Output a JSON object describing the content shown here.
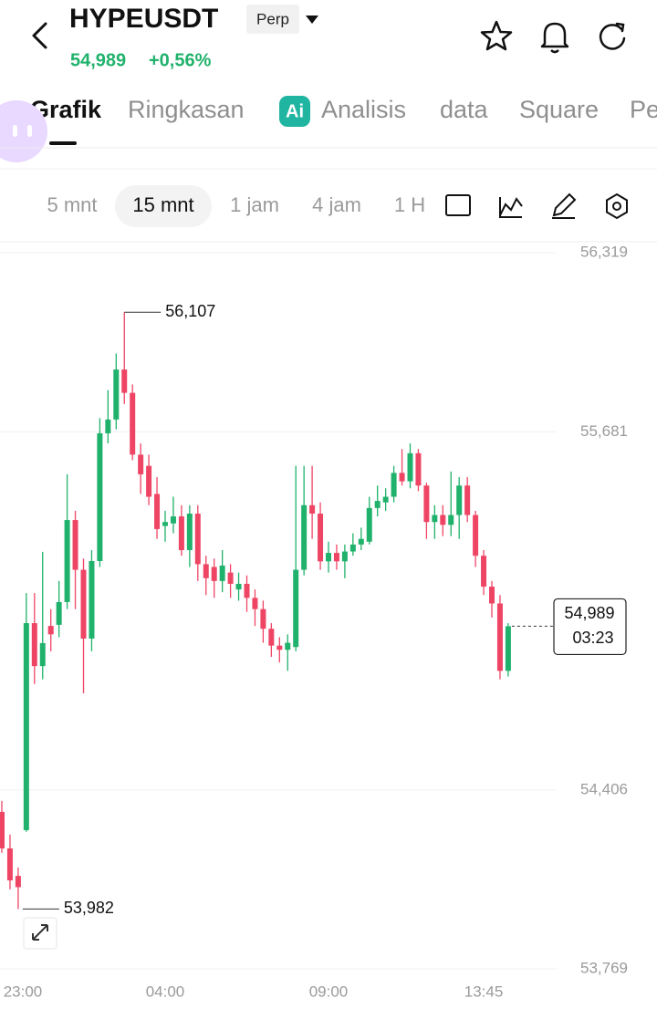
{
  "header": {
    "symbol": "HYPEUSDT",
    "badge": "Perp",
    "price": "54,989",
    "change": "+0,56%"
  },
  "tabs": [
    "Grafik",
    "Ringkasan",
    "Analisis",
    "data",
    "Square",
    "Pe"
  ],
  "active_tab": 0,
  "timeframes": [
    "5 mnt",
    "15 mnt",
    "1 jam",
    "4 jam",
    "1 H"
  ],
  "active_timeframe": 1,
  "chart_data": {
    "type": "candlestick",
    "categories": [
      "23:00",
      null,
      null,
      null,
      null,
      null,
      null,
      null,
      null,
      null,
      null,
      null,
      null,
      null,
      null,
      null,
      null,
      null,
      null,
      null,
      "04:00",
      null,
      null,
      null,
      null,
      null,
      null,
      null,
      null,
      null,
      null,
      null,
      null,
      null,
      null,
      null,
      null,
      null,
      null,
      null,
      "09:00",
      null,
      null,
      null,
      null,
      null,
      null,
      null,
      null,
      null,
      null,
      null,
      null,
      null,
      null,
      null,
      null,
      null,
      null,
      "13:45",
      null,
      null,
      null
    ],
    "open": [
      54328,
      54198,
      54100,
      54263,
      55000,
      54847,
      54990,
      54994,
      55075,
      55367,
      55190,
      54945,
      55221,
      55676,
      55725,
      55903,
      55820,
      55600,
      55560,
      55460,
      55346,
      55355,
      55380,
      55260,
      55390,
      55210,
      55200,
      55150,
      55180,
      55120,
      55140,
      55090,
      55050,
      54980,
      54920,
      54905,
      54915,
      55190,
      55420,
      55390,
      55220,
      55250,
      55220,
      55255,
      55280,
      55290,
      55410,
      55430,
      55450,
      55535,
      55505,
      55605,
      55490,
      55360,
      55385,
      55350,
      55385,
      55490,
      55385,
      55240,
      55130,
      55070,
      54830
    ],
    "high": [
      54367,
      54247,
      54130,
      55107,
      55107,
      55254,
      55050,
      55150,
      55530,
      55400,
      55230,
      55260,
      55730,
      55830,
      55960,
      56107,
      55850,
      55640,
      55600,
      55520,
      55400,
      55450,
      55420,
      55420,
      55420,
      55240,
      55230,
      55260,
      55210,
      55180,
      55170,
      55120,
      55080,
      55000,
      54950,
      54960,
      55560,
      55560,
      55560,
      55430,
      55290,
      55280,
      55280,
      55320,
      55340,
      55450,
      55490,
      55480,
      55560,
      55620,
      55640,
      55620,
      55500,
      55420,
      55420,
      55540,
      55520,
      55520,
      55400,
      55260,
      55150,
      55100,
      55000
    ],
    "low": [
      54182,
      54052,
      53982,
      54257,
      54783,
      54800,
      54900,
      54950,
      55050,
      55050,
      54750,
      54900,
      55200,
      55640,
      55690,
      55780,
      55580,
      55460,
      55420,
      55300,
      55290,
      55320,
      55240,
      55200,
      55150,
      55100,
      55090,
      55110,
      55090,
      55080,
      55040,
      54990,
      54930,
      54880,
      54860,
      54830,
      54900,
      55170,
      55300,
      55190,
      55180,
      55190,
      55160,
      55240,
      55260,
      55280,
      55380,
      55400,
      55430,
      55490,
      55480,
      55470,
      55300,
      55300,
      55310,
      55310,
      55300,
      55360,
      55200,
      55100,
      55020,
      54800,
      54810
    ],
    "close": [
      54198,
      54084,
      54060,
      55000,
      54847,
      54929,
      54960,
      55075,
      55367,
      55190,
      54945,
      55221,
      55676,
      55725,
      55903,
      55820,
      55600,
      55530,
      55450,
      55335,
      55360,
      55380,
      55260,
      55390,
      55210,
      55160,
      55150,
      55205,
      55140,
      55140,
      55090,
      55050,
      54980,
      54920,
      54905,
      54930,
      55190,
      55420,
      55390,
      55220,
      55250,
      55220,
      55255,
      55280,
      55300,
      55410,
      55435,
      55450,
      55535,
      55505,
      55605,
      55490,
      55360,
      55385,
      55350,
      55385,
      55490,
      55385,
      55240,
      55130,
      55070,
      54830,
      54989
    ],
    "up_color": "#20b26c",
    "down_color": "#ef4565",
    "ylim": [
      53769,
      56319
    ],
    "yticks": [
      {
        "value": 56319,
        "label": "56,319"
      },
      {
        "value": 55681,
        "label": "55,681"
      },
      {
        "value": 54406,
        "label": "54,406"
      },
      {
        "value": 53769,
        "label": "53,769"
      }
    ],
    "grid": true,
    "max_label": {
      "value": 56107,
      "label": "56,107"
    },
    "min_label": {
      "value": 53982,
      "label": "53,982"
    },
    "last_price": {
      "value": 54989,
      "label": "54,989",
      "countdown": "03:23"
    }
  }
}
